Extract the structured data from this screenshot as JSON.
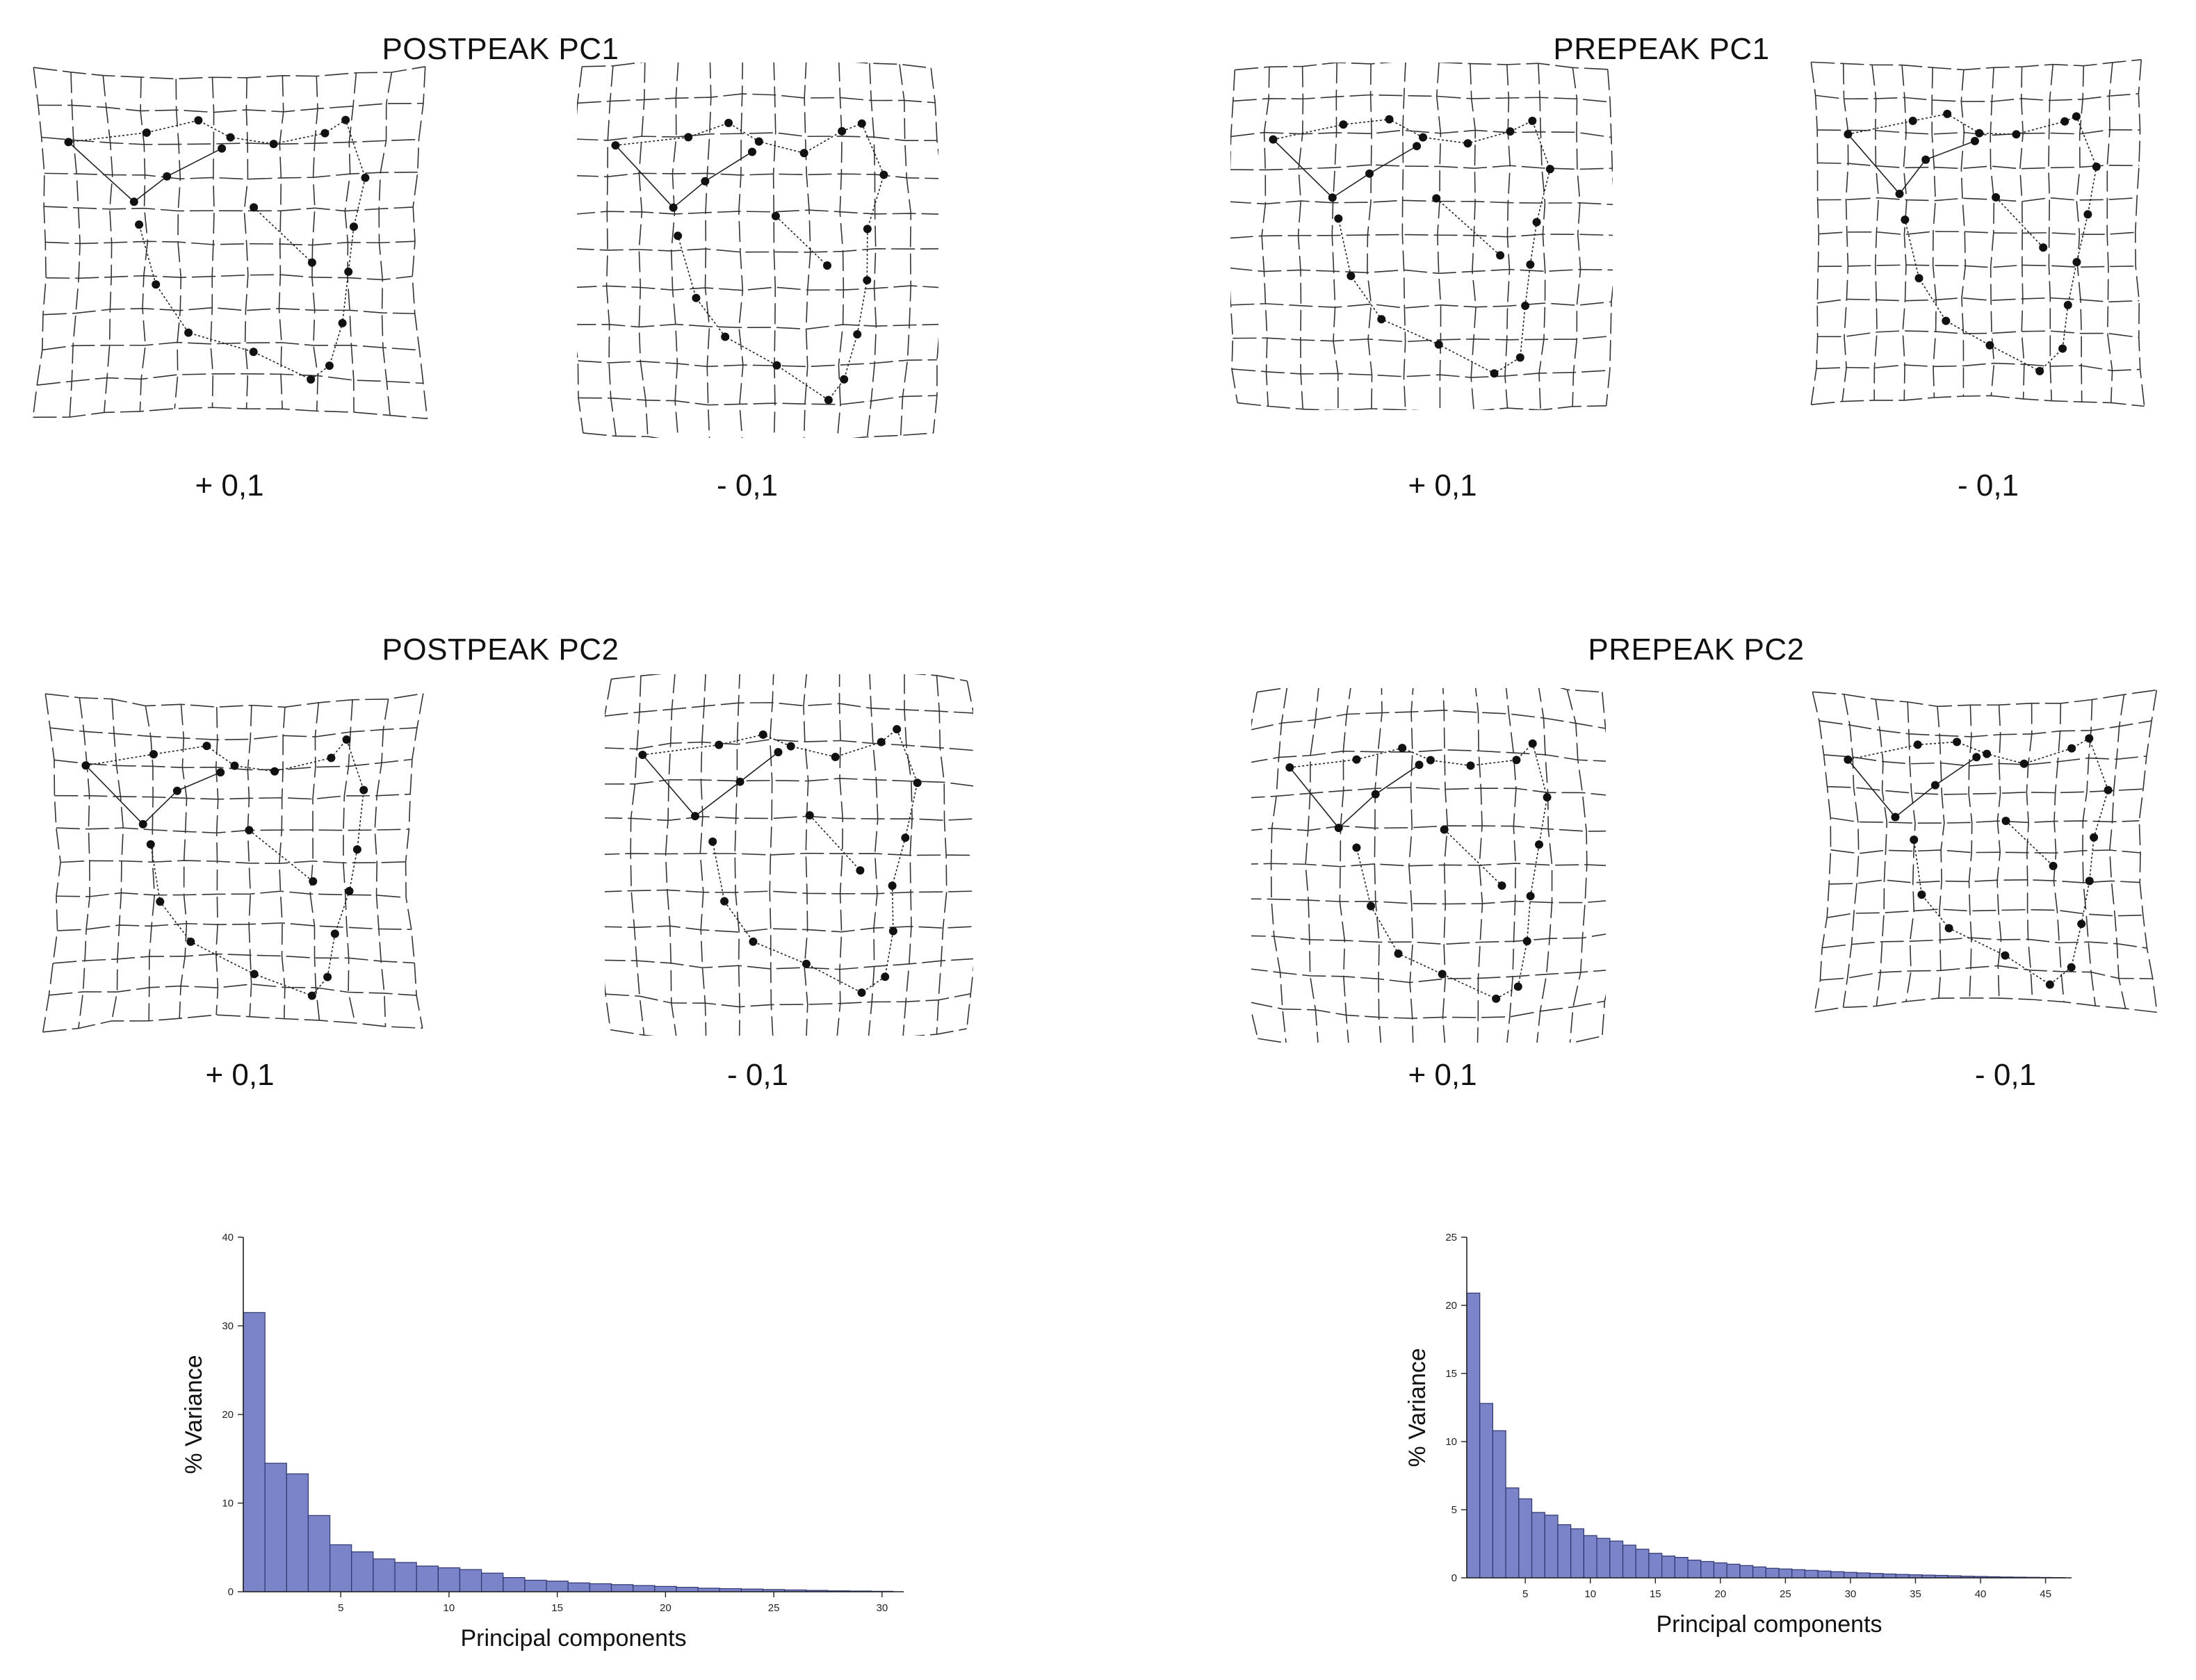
{
  "figures": {
    "postpeak_pc1": {
      "title": "POSTPEAK PC1",
      "plus_label": "+ 0,1",
      "minus_label": "- 0,1"
    },
    "prepeak_pc1": {
      "title": "PREPEAK PC1",
      "plus_label": "+ 0,1",
      "minus_label": "- 0,1"
    },
    "postpeak_pc2": {
      "title": "POSTPEAK PC2",
      "plus_label": "+ 0,1",
      "minus_label": "- 0,1"
    },
    "prepeak_pc2": {
      "title": "PREPEAK PC2",
      "plus_label": "+ 0,1",
      "minus_label": "- 0,1"
    }
  },
  "colors": {
    "bar_fill": "#7b84c9",
    "bar_stroke": "#2e3570",
    "grid_line": "#333333",
    "landmark": "#111111"
  },
  "chart_data": [
    {
      "type": "bar",
      "title": "",
      "xlabel": "Principal components",
      "ylabel": "% Variance",
      "xlim": [
        0.5,
        31
      ],
      "ylim": [
        0,
        40
      ],
      "xticks": [
        5,
        10,
        15,
        20,
        25,
        30
      ],
      "yticks": [
        0,
        10,
        20,
        30,
        40
      ],
      "categories": [
        1,
        2,
        3,
        4,
        5,
        6,
        7,
        8,
        9,
        10,
        11,
        12,
        13,
        14,
        15,
        16,
        17,
        18,
        19,
        20,
        21,
        22,
        23,
        24,
        25,
        26,
        27,
        28,
        29,
        30
      ],
      "values": [
        31.5,
        14.5,
        13.3,
        8.6,
        5.3,
        4.5,
        3.7,
        3.3,
        2.9,
        2.7,
        2.5,
        2.1,
        1.6,
        1.3,
        1.2,
        1.0,
        0.9,
        0.8,
        0.7,
        0.6,
        0.5,
        0.4,
        0.35,
        0.3,
        0.25,
        0.2,
        0.15,
        0.1,
        0.08,
        0.05
      ]
    },
    {
      "type": "bar",
      "title": "",
      "xlabel": "Principal components",
      "ylabel": "% Variance",
      "xlim": [
        0.5,
        47
      ],
      "ylim": [
        0,
        25
      ],
      "xticks": [
        5,
        10,
        15,
        20,
        25,
        30,
        35,
        40,
        45
      ],
      "yticks": [
        0,
        5,
        10,
        15,
        20,
        25
      ],
      "categories": [
        1,
        2,
        3,
        4,
        5,
        6,
        7,
        8,
        9,
        10,
        11,
        12,
        13,
        14,
        15,
        16,
        17,
        18,
        19,
        20,
        21,
        22,
        23,
        24,
        25,
        26,
        27,
        28,
        29,
        30,
        31,
        32,
        33,
        34,
        35,
        36,
        37,
        38,
        39,
        40,
        41,
        42,
        43,
        44,
        45,
        46
      ],
      "values": [
        20.9,
        12.8,
        10.8,
        6.6,
        5.8,
        4.8,
        4.6,
        3.9,
        3.6,
        3.1,
        2.9,
        2.7,
        2.4,
        2.1,
        1.8,
        1.6,
        1.5,
        1.3,
        1.2,
        1.1,
        1.0,
        0.9,
        0.8,
        0.7,
        0.65,
        0.6,
        0.55,
        0.5,
        0.45,
        0.4,
        0.36,
        0.32,
        0.28,
        0.25,
        0.22,
        0.2,
        0.18,
        0.15,
        0.12,
        0.1,
        0.08,
        0.06,
        0.05,
        0.04,
        0.03,
        0.02
      ]
    }
  ]
}
